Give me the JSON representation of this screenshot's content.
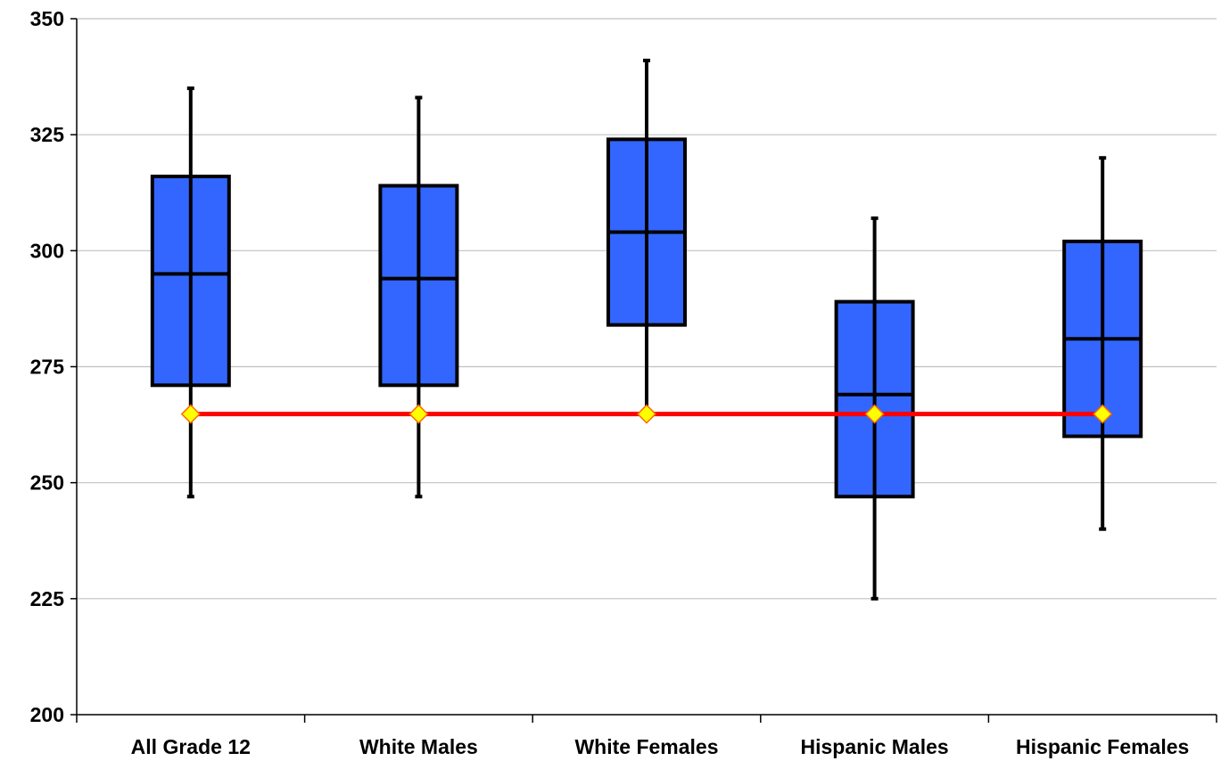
{
  "chart_data": {
    "type": "box",
    "title": "",
    "xlabel": "",
    "ylabel": "",
    "ylim": [
      200,
      350
    ],
    "yticks": [
      200,
      225,
      250,
      275,
      300,
      325,
      350
    ],
    "grid": true,
    "categories": [
      "All Grade 12",
      "White Males",
      "White Females",
      "Hispanic Males",
      "Hispanic Females"
    ],
    "boxes": [
      {
        "min": 247,
        "q1": 271,
        "median": 295,
        "q3": 316,
        "max": 335
      },
      {
        "min": 247,
        "q1": 271,
        "median": 294,
        "q3": 314,
        "max": 333
      },
      {
        "min": 265,
        "q1": 284,
        "median": 304,
        "q3": 324,
        "max": 341
      },
      {
        "min": 225,
        "q1": 247,
        "median": 269,
        "q3": 289,
        "max": 307
      },
      {
        "min": 240,
        "q1": 260,
        "median": 281,
        "q3": 302,
        "max": 320
      }
    ],
    "reference_line": {
      "value": 264.8
    },
    "colors": {
      "box_fill": "#3366ff",
      "box_stroke": "#000000",
      "whisker": "#000000",
      "reference_line": "#ff0000",
      "marker_fill": "#ffff00",
      "marker_stroke": "#ff6600",
      "grid": "#c0c0c0"
    }
  }
}
